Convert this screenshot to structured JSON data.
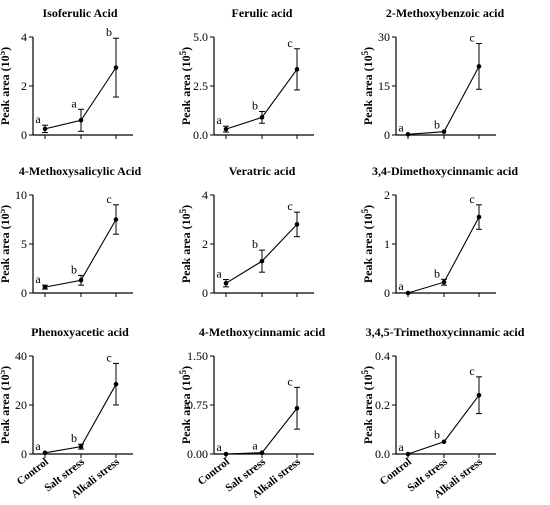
{
  "chart_data": [
    {
      "type": "line",
      "title": "Isoferulic Acid",
      "ylabel": "Peak area (10",
      "ylabel_exp": "5",
      "ylabel_close": ")",
      "categories": [
        "Control",
        "Salt stress",
        "Alkali stress"
      ],
      "values": [
        0.25,
        0.6,
        2.75
      ],
      "errors": [
        0.15,
        0.45,
        1.2
      ],
      "letters": [
        "a",
        "a",
        "b"
      ],
      "ylim": [
        0,
        4
      ],
      "yticks": [
        "0",
        "2",
        "4"
      ],
      "ytick_values": [
        0,
        2,
        4
      ],
      "show_xticklabels": false
    },
    {
      "type": "line",
      "title": "Ferulic acid",
      "ylabel": "Peak area (10",
      "ylabel_exp": "5",
      "ylabel_close": ")",
      "categories": [
        "Control",
        "Salt stress",
        "Alkali stress"
      ],
      "values": [
        0.3,
        0.9,
        3.35
      ],
      "errors": [
        0.15,
        0.3,
        1.05
      ],
      "letters": [
        "a",
        "b",
        "c"
      ],
      "ylim": [
        0,
        5
      ],
      "yticks": [
        "0.0",
        "2.5",
        "5.0"
      ],
      "ytick_values": [
        0,
        2.5,
        5
      ],
      "show_xticklabels": false
    },
    {
      "type": "line",
      "title": "2-Methoxybenzoic acid",
      "ylabel": "Peak area (10",
      "ylabel_exp": "5",
      "ylabel_close": ")",
      "categories": [
        "Control",
        "Salt stress",
        "Alkali stress"
      ],
      "values": [
        0.2,
        1.0,
        21
      ],
      "errors": [
        0.1,
        0.3,
        7
      ],
      "letters": [
        "a",
        "b",
        "c"
      ],
      "ylim": [
        0,
        30
      ],
      "yticks": [
        "0",
        "15",
        "30"
      ],
      "ytick_values": [
        0,
        15,
        30
      ],
      "show_xticklabels": false
    },
    {
      "type": "line",
      "title": "4-Methoxysalicylic Acid",
      "ylabel": "Peak area (10",
      "ylabel_exp": "5",
      "ylabel_close": ")",
      "categories": [
        "Control",
        "Salt stress",
        "Alkali stress"
      ],
      "values": [
        0.6,
        1.3,
        7.5
      ],
      "errors": [
        0.2,
        0.5,
        1.5
      ],
      "letters": [
        "a",
        "b",
        "c"
      ],
      "ylim": [
        0,
        10
      ],
      "yticks": [
        "0",
        "5",
        "10"
      ],
      "ytick_values": [
        0,
        5,
        10
      ],
      "show_xticklabels": false
    },
    {
      "type": "line",
      "title": "Veratric acid",
      "ylabel": "Peak area (10",
      "ylabel_exp": "5",
      "ylabel_close": ")",
      "categories": [
        "Control",
        "Salt stress",
        "Alkali stress"
      ],
      "values": [
        0.4,
        1.3,
        2.8
      ],
      "errors": [
        0.15,
        0.45,
        0.5
      ],
      "letters": [
        "a",
        "b",
        "c"
      ],
      "ylim": [
        0,
        4
      ],
      "yticks": [
        "0",
        "2",
        "4"
      ],
      "ytick_values": [
        0,
        2,
        4
      ],
      "show_xticklabels": false
    },
    {
      "type": "line",
      "title": "3,4-Dimethoxycinnamic acid",
      "ylabel": "Peak area (10",
      "ylabel_exp": "5",
      "ylabel_close": ")",
      "categories": [
        "Control",
        "Salt stress",
        "Alkali stress"
      ],
      "values": [
        0.0,
        0.22,
        1.55
      ],
      "errors": [
        0.02,
        0.06,
        0.25
      ],
      "letters": [
        "a",
        "b",
        "c"
      ],
      "ylim": [
        0,
        2
      ],
      "yticks": [
        "0",
        "1",
        "2"
      ],
      "ytick_values": [
        0,
        1,
        2
      ],
      "show_xticklabels": false
    },
    {
      "type": "line",
      "title": "Phenoxyacetic acid",
      "ylabel": "Peak area (10",
      "ylabel_exp": "5",
      "ylabel_close": ")",
      "categories": [
        "Control",
        "Salt stress",
        "Alkali stress"
      ],
      "values": [
        0.5,
        3.0,
        28.5
      ],
      "errors": [
        0.3,
        1.0,
        8.5
      ],
      "letters": [
        "a",
        "b",
        "c"
      ],
      "ylim": [
        0,
        40
      ],
      "yticks": [
        "0",
        "20",
        "40"
      ],
      "ytick_values": [
        0,
        20,
        40
      ],
      "show_xticklabels": true
    },
    {
      "type": "line",
      "title": "4-Methoxycinnamic acid",
      "ylabel": "Peak area (10",
      "ylabel_exp": "5",
      "ylabel_close": ")",
      "categories": [
        "Control",
        "Salt stress",
        "Alkali stress"
      ],
      "values": [
        0.0,
        0.02,
        0.7
      ],
      "errors": [
        0.005,
        0.01,
        0.32
      ],
      "letters": [
        "a",
        "a",
        "c"
      ],
      "ylim": [
        0,
        1.5
      ],
      "yticks": [
        "0.00",
        "0.75",
        "1.50"
      ],
      "ytick_values": [
        0,
        0.75,
        1.5
      ],
      "show_xticklabels": true
    },
    {
      "type": "line",
      "title": "3,4,5-Trimethoxycinnamic acid",
      "ylabel": "Peak area (10",
      "ylabel_exp": "5",
      "ylabel_close": ")",
      "categories": [
        "Control",
        "Salt stress",
        "Alkali stress"
      ],
      "values": [
        0.0,
        0.05,
        0.24
      ],
      "errors": [
        0.003,
        0.005,
        0.075
      ],
      "letters": [
        "a",
        "b",
        "c"
      ],
      "ylim": [
        0,
        0.4
      ],
      "yticks": [
        "0.0",
        "0.2",
        "0.4"
      ],
      "ytick_values": [
        0,
        0.2,
        0.4
      ],
      "show_xticklabels": true
    }
  ]
}
